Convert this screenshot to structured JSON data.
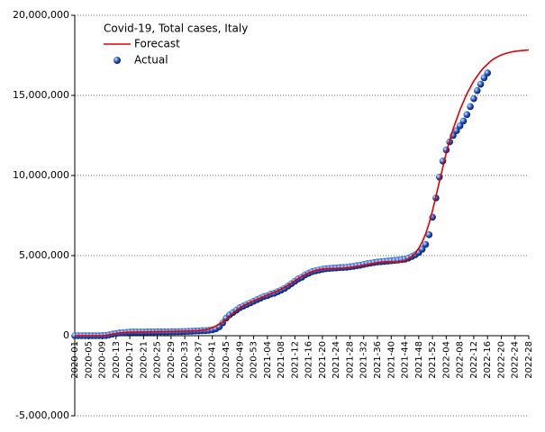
{
  "chart_data": {
    "type": "line",
    "title": "Covid-19, Total cases, Italy",
    "categories": [
      "2020-01",
      null,
      null,
      null,
      "2020-05",
      null,
      null,
      null,
      "2020-09",
      null,
      null,
      null,
      "2020-13",
      null,
      null,
      null,
      "2020-17",
      null,
      null,
      null,
      "2020-21",
      null,
      null,
      null,
      "2020-25",
      null,
      null,
      null,
      "2020-29",
      null,
      null,
      null,
      "2020-33",
      null,
      null,
      null,
      "2020-37",
      null,
      null,
      null,
      "2020-41",
      null,
      null,
      null,
      "2020-45",
      null,
      null,
      null,
      "2020-49",
      null,
      null,
      null,
      "2020-53",
      null,
      null,
      null,
      "2021-04",
      null,
      null,
      null,
      "2021-08",
      null,
      null,
      null,
      "2021-12",
      null,
      null,
      null,
      "2021-16",
      null,
      null,
      null,
      "2021-20",
      null,
      null,
      null,
      "2021-24",
      null,
      null,
      null,
      "2021-28",
      null,
      null,
      null,
      "2021-32",
      null,
      null,
      null,
      "2021-36",
      null,
      null,
      null,
      "2021-40",
      null,
      null,
      null,
      "2021-44",
      null,
      null,
      null,
      "2021-48",
      null,
      null,
      null,
      "2021-52",
      null,
      null,
      null,
      "2022-04",
      null,
      null,
      null,
      "2022-08",
      null,
      null,
      null,
      "2022-12",
      null,
      null,
      null,
      "2022-16",
      null,
      null,
      null,
      "2022-20",
      null,
      null,
      null,
      "2022-24",
      null,
      null,
      null,
      "2022-28"
    ],
    "series": [
      {
        "name": "Forecast",
        "color": "#e00000",
        "style": "line",
        "values": [
          0,
          0,
          0,
          0,
          0,
          0,
          0,
          0,
          0,
          20000,
          60000,
          100000,
          140000,
          170000,
          190000,
          205000,
          215000,
          222000,
          227000,
          230000,
          234000,
          238000,
          242000,
          246000,
          250000,
          254000,
          258000,
          262000,
          266000,
          270000,
          275000,
          280000,
          286000,
          292000,
          300000,
          310000,
          320000,
          340000,
          370000,
          420000,
          500000,
          600000,
          720000,
          850000,
          1000000,
          1200000,
          1400000,
          1580000,
          1740000,
          1870000,
          1980000,
          2080000,
          2180000,
          2270000,
          2360000,
          2450000,
          2540000,
          2630000,
          2720000,
          2810000,
          2910000,
          3020000,
          3150000,
          3290000,
          3430000,
          3570000,
          3700000,
          3820000,
          3920000,
          4000000,
          4070000,
          4120000,
          4160000,
          4180000,
          4190000,
          4200000,
          4200000,
          4210000,
          4220000,
          4240000,
          4260000,
          4290000,
          4320000,
          4360000,
          4400000,
          4440000,
          4480000,
          4520000,
          4560000,
          4590000,
          4610000,
          4610000,
          4600000,
          4590000,
          4600000,
          4640000,
          4700000,
          4800000,
          4950000,
          5150000,
          5450000,
          5850000,
          6350000,
          7000000,
          7800000,
          8700000,
          9600000,
          10500000,
          11400000,
          12200000,
          12900000,
          13500000,
          14100000,
          14600000,
          15100000,
          15500000,
          15900000,
          16200000,
          16500000,
          16750000,
          16950000,
          17150000,
          17300000,
          17420000,
          17520000,
          17600000,
          17660000,
          17710000,
          17750000,
          17780000,
          17800000,
          17820000,
          17830000
        ]
      },
      {
        "name": "Actual",
        "color": "#1a4fc0",
        "style": "points",
        "values": [
          0,
          0,
          0,
          0,
          0,
          0,
          0,
          0,
          1000,
          10000,
          50000,
          100000,
          140000,
          170000,
          190000,
          210000,
          220000,
          230000,
          230000,
          230000,
          231000,
          233000,
          235000,
          238000,
          240000,
          241000,
          243000,
          245000,
          248000,
          250000,
          253000,
          258000,
          265000,
          270000,
          280000,
          290000,
          300000,
          310000,
          320000,
          340000,
          370000,
          430000,
          560000,
          800000,
          1100000,
          1300000,
          1450000,
          1600000,
          1750000,
          1850000,
          1950000,
          2050000,
          2150000,
          2250000,
          2350000,
          2450000,
          2500000,
          2600000,
          2650000,
          2750000,
          2850000,
          2950000,
          3100000,
          3250000,
          3400000,
          3550000,
          3650000,
          3800000,
          3900000,
          4000000,
          4050000,
          4100000,
          4150000,
          4180000,
          4200000,
          4220000,
          4230000,
          4250000,
          4260000,
          4270000,
          4300000,
          4330000,
          4370000,
          4400000,
          4450000,
          4500000,
          4530000,
          4570000,
          4600000,
          4620000,
          4640000,
          4660000,
          4680000,
          4700000,
          4720000,
          4750000,
          4780000,
          4850000,
          4950000,
          5050000,
          5200000,
          5400000,
          5700000,
          6300000,
          7400000,
          8600000,
          9900000,
          10900000,
          11600000,
          12100000,
          12500000,
          12800000,
          13100000,
          13400000,
          13800000,
          14300000,
          14800000,
          15300000,
          15700000,
          16100000,
          16400000,
          null,
          null,
          null,
          null,
          null,
          null,
          null,
          null,
          null,
          null,
          null,
          null
        ]
      }
    ],
    "ylim": [
      -5000000,
      20000000
    ],
    "yticks": [
      {
        "value": -5000000,
        "label": "-5,000,000"
      },
      0,
      {
        "value": 5000000,
        "label": "5,000,000"
      },
      {
        "value": 10000000,
        "label": "10,000,000"
      },
      {
        "value": 15000000,
        "label": "15,000,000"
      },
      {
        "value": 20000000,
        "label": "20,000,000"
      }
    ],
    "grid": true,
    "legend": "top-left"
  }
}
